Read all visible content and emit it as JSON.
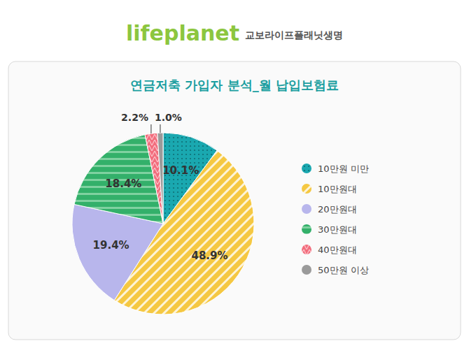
{
  "chart_data": {
    "type": "pie",
    "title": "연금저축 가입자 분석_월 납입보험료",
    "annotations": [
      "lifeplanet",
      "교보라이프플래닛생명"
    ],
    "categories": [
      "10만원 미만",
      "10만원대",
      "20만원대",
      "30만원대",
      "40만원대",
      "50만원 이상"
    ],
    "values": [
      10.1,
      48.9,
      19.4,
      18.4,
      2.2,
      1.0
    ],
    "value_labels": [
      "10.1%",
      "48.9%",
      "19.4%",
      "18.4%",
      "2.2%",
      "1.0%"
    ],
    "colors": [
      "#1aa8b0",
      "#f5c842",
      "#b8b6ec",
      "#33b06a",
      "#f26d7d",
      "#9a9a9a"
    ],
    "data_labels": true,
    "legend": "right"
  }
}
